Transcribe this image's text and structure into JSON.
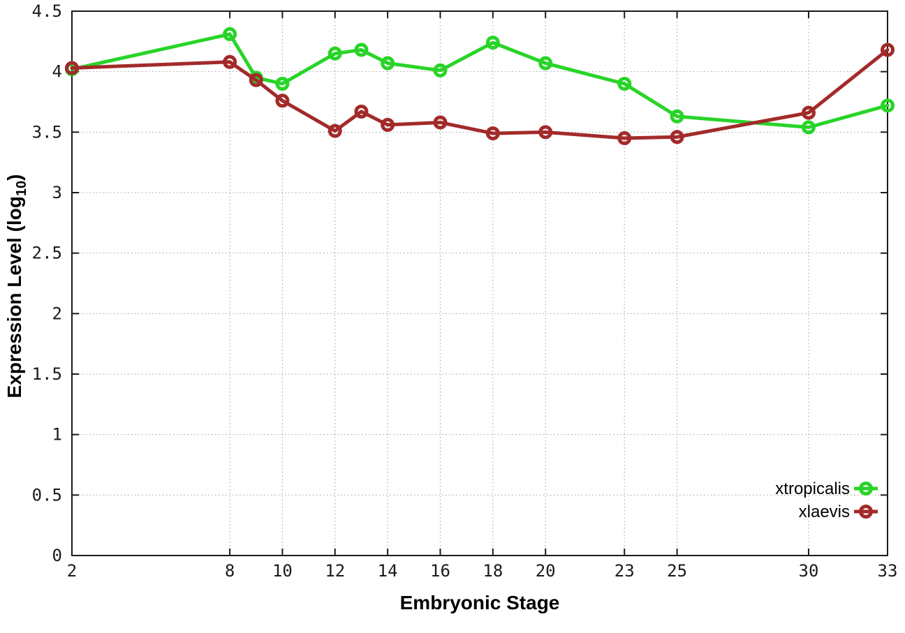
{
  "chart_data": {
    "type": "line",
    "title": "",
    "xlabel": "Embryonic Stage",
    "ylabel_prefix": "Expression Level (log",
    "ylabel_sub": "10",
    "ylabel_suffix": ")",
    "x": [
      2,
      8,
      9,
      10,
      12,
      13,
      14,
      16,
      18,
      20,
      23,
      25,
      30,
      33
    ],
    "series": [
      {
        "name": "xtropicalis",
        "color": "#28d428",
        "values": [
          4.02,
          4.31,
          3.95,
          3.9,
          4.15,
          4.18,
          4.07,
          4.01,
          4.24,
          4.07,
          3.9,
          3.63,
          3.54,
          3.72
        ]
      },
      {
        "name": "xlaevis",
        "color": "#a32a2a",
        "values": [
          4.03,
          4.08,
          3.93,
          3.76,
          3.51,
          3.67,
          3.56,
          3.58,
          3.49,
          3.5,
          3.45,
          3.46,
          3.66,
          4.18
        ]
      }
    ],
    "xlim": [
      2,
      33
    ],
    "ylim": [
      0,
      4.5
    ],
    "xticks": [
      {
        "value": 2,
        "label": "2"
      },
      {
        "value": 8,
        "label": "8"
      },
      {
        "value": 10,
        "label": "10"
      },
      {
        "value": 12,
        "label": "12"
      },
      {
        "value": 14,
        "label": "14"
      },
      {
        "value": 16,
        "label": "16"
      },
      {
        "value": 18,
        "label": "18"
      },
      {
        "value": 20,
        "label": "20"
      },
      {
        "value": 23,
        "label": "23"
      },
      {
        "value": 25,
        "label": "25"
      },
      {
        "value": 30,
        "label": "30"
      },
      {
        "value": 33,
        "label": "33"
      }
    ],
    "yticks": [
      {
        "value": 0,
        "label": "0"
      },
      {
        "value": 0.5,
        "label": "0.5"
      },
      {
        "value": 1,
        "label": "1"
      },
      {
        "value": 1.5,
        "label": "1.5"
      },
      {
        "value": 2,
        "label": "2"
      },
      {
        "value": 2.5,
        "label": "2.5"
      },
      {
        "value": 3,
        "label": "3"
      },
      {
        "value": 3.5,
        "label": "3.5"
      },
      {
        "value": 4,
        "label": "4"
      },
      {
        "value": 4.5,
        "label": "4.5"
      }
    ],
    "grid": true,
    "legend_position": "inside-bottom-right",
    "legend_entries": [
      "xtropicalis",
      "xlaevis"
    ],
    "background_color": "#ffffff",
    "axis_color": "#1a1a1a",
    "grid_color": "#9c9c9c"
  }
}
